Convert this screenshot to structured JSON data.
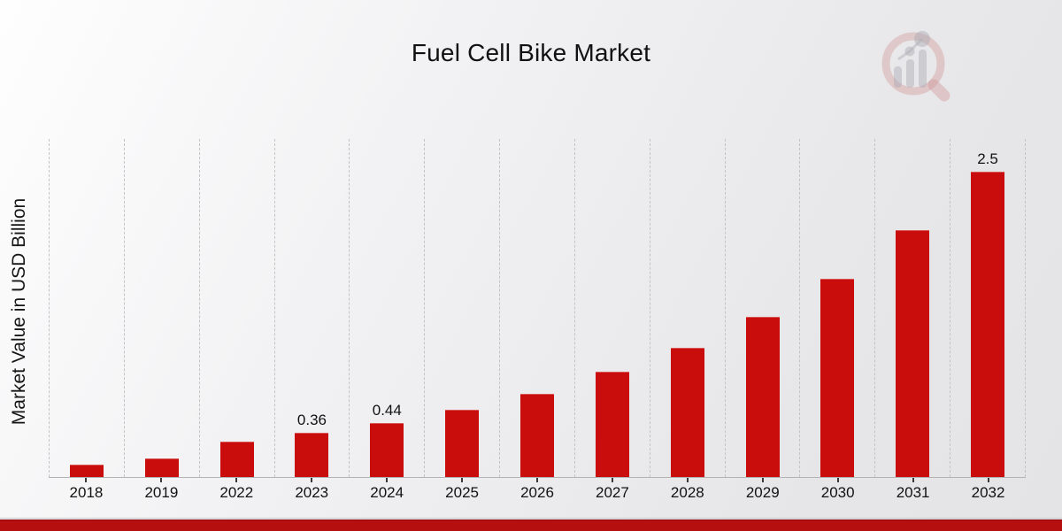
{
  "title": "Fuel Cell Bike Market",
  "y_axis_label": "Market Value in USD Billion",
  "logo": {
    "name": "market-research-future-watermark"
  },
  "colors": {
    "bar": "#c90d0d",
    "footer_band": "#b50f0f",
    "gridline": "#c3c3c6",
    "axis_line": "#b3b3b5",
    "text": "#121212",
    "logo_ring_pink": "rgba(203,130,130,0.38)",
    "logo_gray": "rgba(160,160,170,0.45)"
  },
  "chart_data": {
    "type": "bar",
    "title": "Fuel Cell Bike Market",
    "xlabel": "",
    "ylabel": "Market Value in USD Billion",
    "categories": [
      "2018",
      "2019",
      "2022",
      "2023",
      "2024",
      "2025",
      "2026",
      "2027",
      "2028",
      "2029",
      "2030",
      "2031",
      "2032"
    ],
    "values": [
      0.1,
      0.15,
      0.29,
      0.36,
      0.44,
      0.55,
      0.68,
      0.86,
      1.06,
      1.31,
      1.62,
      2.02,
      2.5
    ],
    "data_labels": [
      "",
      "",
      "",
      "0.36",
      "0.44",
      "",
      "",
      "",
      "",
      "",
      "",
      "",
      "2.5"
    ],
    "ylim": [
      0,
      2.78
    ],
    "grid": "vertical-dashed",
    "legend": "none",
    "bar_color": "#c90d0d"
  }
}
